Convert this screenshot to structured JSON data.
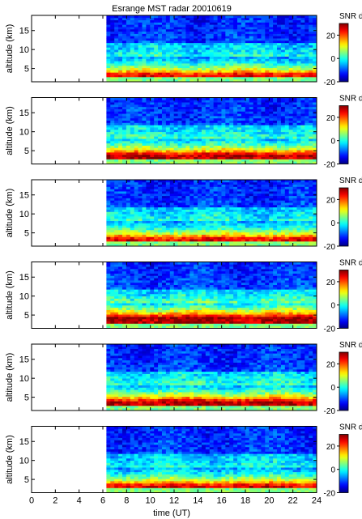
{
  "chart_data": {
    "type": "heatmap",
    "title": "Esrange MST radar 20010619",
    "xlabel": "time (UT)",
    "ylabel": "altitude (km)",
    "xlim": [
      0,
      24
    ],
    "ylim": [
      1.5,
      19
    ],
    "x_ticks": [
      0,
      2,
      4,
      6,
      8,
      10,
      12,
      14,
      16,
      18,
      20,
      22,
      24
    ],
    "y_ticks": [
      5,
      10,
      15
    ],
    "data_time_start": 6.3,
    "data_time_end": 24,
    "colorbar": {
      "label": "SNR dB",
      "range": [
        -20,
        30
      ],
      "ticks": [
        -20,
        0,
        20
      ],
      "colormap": "jet"
    },
    "panels": [
      {
        "surface_snr_db": 24,
        "low_alt_peak_km": 3.0
      },
      {
        "surface_snr_db": 27,
        "low_alt_peak_km": 3.5
      },
      {
        "surface_snr_db": 25,
        "low_alt_peak_km": 3.0
      },
      {
        "surface_snr_db": 28,
        "low_alt_peak_km": 4.0
      },
      {
        "surface_snr_db": 27,
        "low_alt_peak_km": 3.5
      },
      {
        "surface_snr_db": 25,
        "low_alt_peak_km": 3.0
      }
    ]
  }
}
